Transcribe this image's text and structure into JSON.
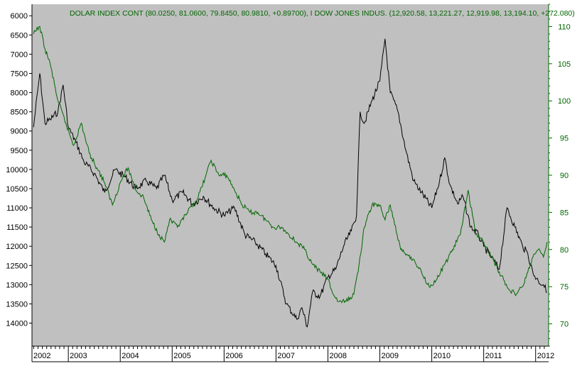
{
  "chart_data": {
    "type": "line",
    "title": "DOLAR INDEX CONT (80.0250, 81.0600, 79.8450, 80.9810, +0.89700), I DOW JONES INDUS. (12,920.58, 13,221.27, 12,919.98, 13,194.10, +272.080)",
    "background": "#c0c0c0",
    "x_years": [
      "2002",
      "2003",
      "2004",
      "2005",
      "2006",
      "2007",
      "2008",
      "2009",
      "2010",
      "2011",
      "2012"
    ],
    "x_range": [
      2002.3,
      2012.25
    ],
    "left_axis": {
      "inverted": true,
      "range": [
        5700,
        14600
      ],
      "ticks": [
        6000,
        6500,
        7000,
        7500,
        8000,
        8500,
        9000,
        9500,
        10000,
        10500,
        11000,
        11500,
        12000,
        12500,
        13000,
        13500,
        14000
      ]
    },
    "right_axis": {
      "range": [
        67,
        113
      ],
      "ticks": [
        70,
        75,
        80,
        85,
        90,
        95,
        100,
        105,
        110
      ],
      "color": "#006600"
    },
    "series": [
      {
        "name": "DOW JONES INDUS.",
        "axis": "left",
        "color": "#000000",
        "x": [
          2002.33,
          2002.45,
          2002.55,
          2002.65,
          2002.8,
          2002.9,
          2003.0,
          2003.15,
          2003.3,
          2003.5,
          2003.7,
          2003.9,
          2004.1,
          2004.3,
          2004.5,
          2004.7,
          2004.85,
          2005.0,
          2005.2,
          2005.4,
          2005.6,
          2005.8,
          2006.0,
          2006.2,
          2006.4,
          2006.6,
          2006.8,
          2007.0,
          2007.2,
          2007.4,
          2007.5,
          2007.6,
          2007.7,
          2007.85,
          2008.0,
          2008.15,
          2008.3,
          2008.45,
          2008.55,
          2008.62,
          2008.7,
          2008.85,
          2009.0,
          2009.1,
          2009.2,
          2009.35,
          2009.5,
          2009.65,
          2009.8,
          2010.0,
          2010.15,
          2010.25,
          2010.35,
          2010.5,
          2010.6,
          2010.75,
          2010.9,
          2011.0,
          2011.15,
          2011.3,
          2011.45,
          2011.6,
          2011.75,
          2011.85,
          2011.95,
          2012.05,
          2012.15,
          2012.22
        ],
        "values": [
          8900,
          7500,
          8800,
          8700,
          8500,
          7800,
          8900,
          9300,
          9800,
          10100,
          10600,
          10000,
          10200,
          10500,
          10300,
          10500,
          10150,
          10800,
          10600,
          10900,
          10700,
          11000,
          11200,
          11000,
          11700,
          11900,
          12200,
          12500,
          13500,
          13900,
          13600,
          14100,
          13200,
          13300,
          12800,
          12600,
          12000,
          11600,
          11200,
          8500,
          8800,
          8200,
          7700,
          6600,
          8000,
          8500,
          9500,
          10300,
          10600,
          11000,
          10300,
          9700,
          10400,
          10900,
          10700,
          11500,
          11700,
          12000,
          12300,
          12600,
          11000,
          11500,
          12000,
          12200,
          12700,
          12900,
          13000,
          13194
        ]
      },
      {
        "name": "DOLAR INDEX CONT",
        "axis": "right",
        "color": "#006600",
        "x": [
          2002.33,
          2002.45,
          2002.55,
          2002.65,
          2002.8,
          2002.95,
          2003.1,
          2003.25,
          2003.4,
          2003.55,
          2003.7,
          2003.85,
          2004.0,
          2004.15,
          2004.3,
          2004.45,
          2004.6,
          2004.75,
          2004.85,
          2004.95,
          2005.1,
          2005.3,
          2005.5,
          2005.65,
          2005.75,
          2005.9,
          2006.05,
          2006.2,
          2006.35,
          2006.5,
          2006.65,
          2006.8,
          2006.95,
          2007.1,
          2007.25,
          2007.4,
          2007.55,
          2007.7,
          2007.85,
          2008.0,
          2008.1,
          2008.2,
          2008.35,
          2008.5,
          2008.6,
          2008.7,
          2008.85,
          2009.0,
          2009.1,
          2009.2,
          2009.4,
          2009.6,
          2009.8,
          2009.95,
          2010.1,
          2010.25,
          2010.4,
          2010.55,
          2010.7,
          2010.85,
          2011.0,
          2011.15,
          2011.3,
          2011.45,
          2011.6,
          2011.75,
          2011.85,
          2011.95,
          2012.05,
          2012.15,
          2012.22
        ],
        "values": [
          109,
          110,
          107,
          105,
          100,
          97,
          94,
          97,
          93,
          91,
          89,
          86,
          89,
          91,
          88,
          87,
          84,
          82,
          81,
          84,
          83,
          85,
          87,
          90,
          92,
          90,
          90,
          88,
          86,
          85,
          85,
          84,
          83,
          83,
          82,
          81,
          80,
          78,
          77,
          76,
          74,
          73,
          73,
          74,
          78,
          83,
          86,
          86,
          84,
          86,
          80,
          79,
          77,
          75,
          76,
          78,
          80,
          82,
          88,
          82,
          81,
          79,
          77,
          75,
          74,
          75,
          77,
          79,
          80,
          79,
          81
        ]
      }
    ]
  }
}
